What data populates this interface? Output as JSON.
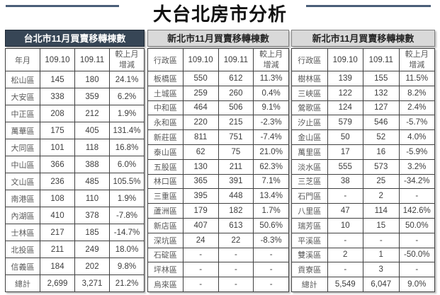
{
  "title": "大台北房市分析",
  "colors": {
    "dark_header_bg": "#374656",
    "dark_header_text": "#ffffff",
    "light_header_bg": "#d9d9d9",
    "title_rule": "#4a5e78",
    "table_border": "#404040",
    "value_text": "#3d3d3d",
    "label_text": "#595959"
  },
  "tables": [
    {
      "title": "台北市11月買賣移轉棟數",
      "header_style": "dark",
      "columns": [
        "年月",
        "109.10",
        "109.11",
        "較上月\n增減"
      ],
      "rows": [
        [
          "松山區",
          "145",
          "180",
          "24.1%"
        ],
        [
          "大安區",
          "338",
          "359",
          "6.2%"
        ],
        [
          "中正區",
          "208",
          "212",
          "1.9%"
        ],
        [
          "萬華區",
          "175",
          "405",
          "131.4%"
        ],
        [
          "大同區",
          "101",
          "118",
          "16.8%"
        ],
        [
          "中山區",
          "366",
          "388",
          "6.0%"
        ],
        [
          "文山區",
          "236",
          "485",
          "105.5%"
        ],
        [
          "南港區",
          "108",
          "110",
          "1.9%"
        ],
        [
          "內湖區",
          "410",
          "378",
          "-7.8%"
        ],
        [
          "士林區",
          "217",
          "185",
          "-14.7%"
        ],
        [
          "北投區",
          "211",
          "249",
          "18.0%"
        ],
        [
          "信義區",
          "184",
          "202",
          "9.8%"
        ],
        [
          "總計",
          "2,699",
          "3,271",
          "21.2%"
        ]
      ]
    },
    {
      "title": "新北市11月買賣移轉棟數",
      "header_style": "light",
      "columns": [
        "行政區",
        "109.10",
        "109.11",
        "較上月\n增減"
      ],
      "rows": [
        [
          "板橋區",
          "550",
          "612",
          "11.3%"
        ],
        [
          "土城區",
          "259",
          "260",
          "0.4%"
        ],
        [
          "中和區",
          "464",
          "506",
          "9.1%"
        ],
        [
          "永和區",
          "220",
          "215",
          "-2.3%"
        ],
        [
          "新莊區",
          "811",
          "751",
          "-7.4%"
        ],
        [
          "泰山區",
          "62",
          "75",
          "21.0%"
        ],
        [
          "五股區",
          "130",
          "211",
          "62.3%"
        ],
        [
          "林口區",
          "365",
          "391",
          "7.1%"
        ],
        [
          "三重區",
          "395",
          "448",
          "13.4%"
        ],
        [
          "蘆洲區",
          "179",
          "182",
          "1.7%"
        ],
        [
          "新店區",
          "407",
          "613",
          "50.6%"
        ],
        [
          "深坑區",
          "24",
          "22",
          "-8.3%"
        ],
        [
          "石碇區",
          "-",
          "-",
          "-"
        ],
        [
          "坪林區",
          "-",
          "-",
          "-"
        ],
        [
          "烏來區",
          "-",
          "-",
          "-"
        ]
      ]
    },
    {
      "title": "新北市11月買賣移轉棟數",
      "header_style": "light",
      "columns": [
        "行政區",
        "109.10",
        "109.11",
        "較上月\n增減"
      ],
      "rows": [
        [
          "樹林區",
          "139",
          "155",
          "11.5%"
        ],
        [
          "三峽區",
          "122",
          "132",
          "8.2%"
        ],
        [
          "鶯歌區",
          "124",
          "127",
          "2.4%"
        ],
        [
          "汐止區",
          "579",
          "546",
          "-5.7%"
        ],
        [
          "金山區",
          "50",
          "52",
          "4.0%"
        ],
        [
          "萬里區",
          "17",
          "16",
          "-5.9%"
        ],
        [
          "淡水區",
          "555",
          "573",
          "3.2%"
        ],
        [
          "三芝區",
          "38",
          "25",
          "-34.2%"
        ],
        [
          "石門區",
          "-",
          "2",
          "-"
        ],
        [
          "八里區",
          "47",
          "114",
          "142.6%"
        ],
        [
          "瑞芳區",
          "10",
          "15",
          "50.0%"
        ],
        [
          "平溪區",
          "-",
          "-",
          "-"
        ],
        [
          "雙溪區",
          "2",
          "1",
          "-50.0%"
        ],
        [
          "貢寮區",
          "-",
          "3",
          "-"
        ],
        [
          "總計",
          "5,549",
          "6,047",
          "9.0%"
        ]
      ]
    }
  ]
}
